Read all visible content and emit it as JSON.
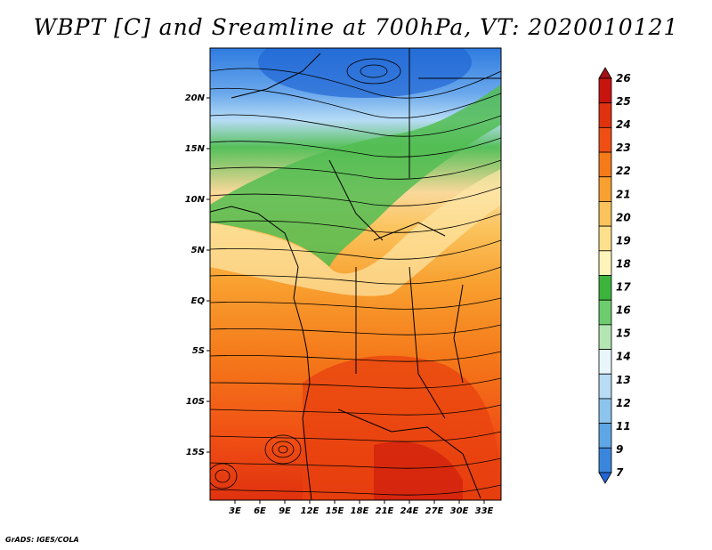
{
  "title": "WBPT [C] and Sreamline at 700hPa, VT: 2020010121",
  "credit": "GrADS: IGES/COLA",
  "map": {
    "lat_labels": [
      "20N",
      "15N",
      "10N",
      "5N",
      "EQ",
      "5S",
      "10S",
      "15S"
    ],
    "lon_labels": [
      "3E",
      "6E",
      "9E",
      "12E",
      "15E",
      "18E",
      "21E",
      "24E",
      "27E",
      "30E",
      "33E"
    ],
    "colorbar": {
      "levels": [
        "26",
        "25",
        "24",
        "23",
        "22",
        "21",
        "20",
        "19",
        "18",
        "17",
        "16",
        "15",
        "14",
        "13",
        "12",
        "11",
        "9",
        "7"
      ],
      "colors": [
        "#a50f15",
        "#c8140f",
        "#e0320f",
        "#f04f14",
        "#f57a1a",
        "#f8a030",
        "#fbc35c",
        "#fde08c",
        "#fef3b8",
        "#3cb43c",
        "#6dcc6d",
        "#b3e6b3",
        "#e8f6fc",
        "#b8dcf5",
        "#8cc4ee",
        "#5ea6e6",
        "#3a86dc",
        "#2166d4"
      ]
    }
  }
}
